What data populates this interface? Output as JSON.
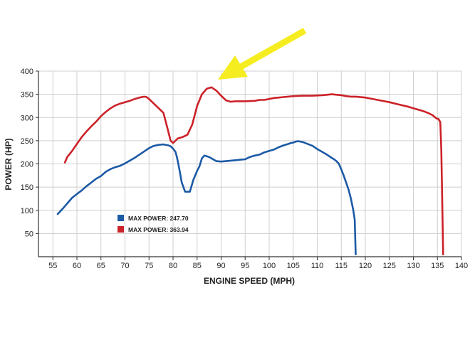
{
  "chart_data": {
    "type": "line",
    "xlabel": "ENGINE SPEED (MPH)",
    "ylabel": "POWER (HP)",
    "xlim": [
      52,
      140
    ],
    "ylim": [
      0,
      400
    ],
    "xticks": [
      55,
      60,
      65,
      70,
      75,
      80,
      85,
      90,
      95,
      100,
      105,
      110,
      115,
      120,
      125,
      130,
      135,
      140
    ],
    "yticks": [
      50,
      100,
      150,
      200,
      250,
      300,
      350,
      400
    ],
    "grid": true,
    "legend_position": "lower-left",
    "series": [
      {
        "name": "MAX POWER: 247.70",
        "color": "#1c5aa6",
        "x": [
          56,
          57,
          58,
          59,
          60,
          61,
          62,
          63,
          64,
          65,
          66,
          67,
          68,
          69,
          70,
          71,
          72,
          73,
          74,
          75,
          76,
          77,
          78,
          79,
          79.5,
          80,
          80.5,
          80.8,
          81.2,
          81.8,
          82.5,
          83.5,
          84.2,
          85,
          85.5,
          86,
          86.5,
          87.5,
          89,
          90,
          91,
          92,
          93,
          94,
          95,
          96,
          97,
          98,
          99,
          100,
          101,
          102,
          103,
          104,
          104.5,
          105,
          105.5,
          106,
          107,
          108,
          109,
          110,
          111,
          112,
          113,
          113.5,
          114,
          114.5,
          115,
          115.5,
          116,
          116.5,
          117,
          117.5,
          117.8,
          118
        ],
        "values": [
          92,
          103,
          115,
          127,
          135,
          143,
          152,
          160,
          168,
          174,
          183,
          189,
          193,
          196,
          201,
          207,
          213,
          220,
          227,
          234,
          239,
          241,
          242,
          240,
          238,
          233,
          226,
          215,
          195,
          160,
          140,
          140,
          165,
          185,
          195,
          212,
          218,
          215,
          206,
          205,
          206,
          207,
          208,
          209,
          210,
          215,
          218,
          220,
          225,
          228,
          231,
          236,
          240,
          243,
          245,
          246,
          248,
          249,
          247,
          243,
          239,
          232,
          226,
          220,
          213,
          210,
          206,
          200,
          188,
          175,
          160,
          145,
          125,
          100,
          80,
          5
        ]
      },
      {
        "name": "MAX POWER: 363.94",
        "color": "#cc2229",
        "x": [
          57.5,
          58,
          59,
          60,
          61,
          62,
          63,
          64,
          65,
          66,
          67,
          68,
          69,
          70,
          71,
          72,
          73,
          74,
          74.5,
          75,
          76,
          77,
          78,
          79,
          79.5,
          80,
          81,
          82,
          83,
          84,
          85,
          86,
          87,
          88,
          89,
          90,
          91,
          92,
          93,
          95,
          97,
          98,
          99,
          100,
          101,
          102,
          103,
          105,
          107,
          109,
          111,
          112,
          113,
          115,
          116,
          117,
          118,
          120,
          121,
          123,
          125,
          127,
          129,
          131,
          132,
          133,
          134,
          134.8,
          135.2,
          135.6,
          135.8,
          136,
          136.2
        ],
        "values": [
          203,
          215,
          228,
          243,
          258,
          270,
          281,
          291,
          303,
          312,
          320,
          326,
          330,
          333,
          336,
          340,
          343,
          345,
          344,
          340,
          330,
          320,
          310,
          270,
          250,
          245,
          255,
          258,
          263,
          285,
          325,
          350,
          362,
          365,
          358,
          347,
          337,
          334,
          335,
          335,
          336,
          338,
          338,
          340,
          342,
          343,
          344,
          346,
          347,
          347,
          348,
          349,
          350,
          348,
          346,
          345,
          345,
          343,
          341,
          337,
          333,
          328,
          323,
          317,
          314,
          310,
          305,
          298,
          297,
          290,
          230,
          120,
          5
        ]
      }
    ]
  },
  "annotation": {
    "arrow_color": "#f5ed20"
  }
}
